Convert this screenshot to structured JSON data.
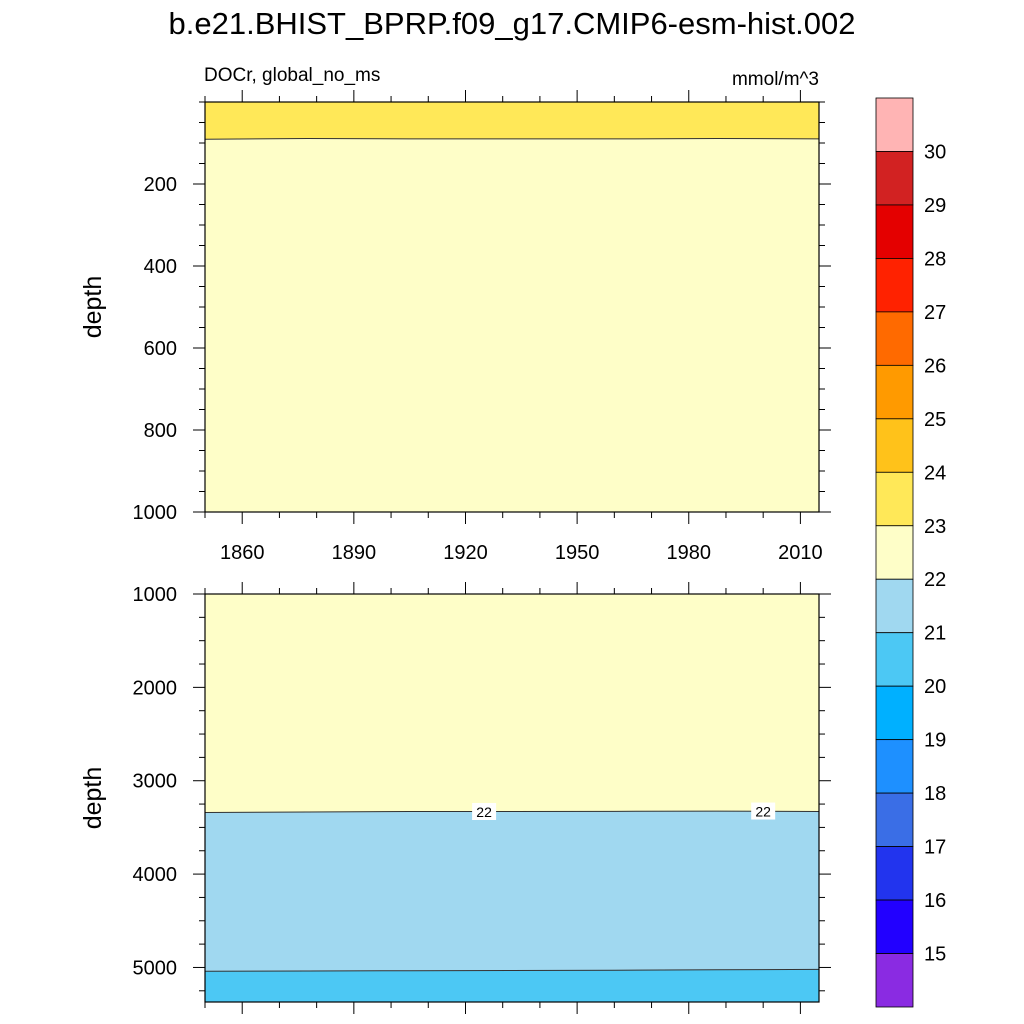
{
  "title": "b.e21.BHIST_BPRP.f09_g17.CMIP6-esm-hist.002",
  "subtitle_left": "DOCr, global_no_ms",
  "subtitle_right": "mmol/m^3",
  "colorbar": {
    "colors": [
      "#8a2be2",
      "#2200ff",
      "#2234ee",
      "#3a6ee6",
      "#1e90ff",
      "#00b0ff",
      "#4cc8f4",
      "#a0d8f0",
      "#fefec8",
      "#ffe858",
      "#ffc21a",
      "#ff9a00",
      "#ff6a00",
      "#ff2200",
      "#e40000",
      "#d22222",
      "#ffb4b4"
    ],
    "labels": [
      "15",
      "16",
      "17",
      "18",
      "19",
      "20",
      "21",
      "22",
      "23",
      "24",
      "25",
      "26",
      "27",
      "28",
      "29",
      "30"
    ]
  },
  "chart_data": [
    {
      "type": "heatmap",
      "panel": "upper",
      "title": "",
      "xlabel": "",
      "ylabel": "depth",
      "xlim": [
        1850,
        2015
      ],
      "ylim": [
        1000,
        0
      ],
      "x_ticks": [
        1860,
        1890,
        1920,
        1950,
        1980,
        2010
      ],
      "y_ticks": [
        200,
        400,
        600,
        800,
        1000
      ],
      "bands": [
        {
          "range": "23-24",
          "color": "#ffe858",
          "top": 0,
          "bottom": 90
        },
        {
          "range": "22-23",
          "color": "#fefec8",
          "top": 90,
          "bottom": 1000
        }
      ],
      "contours": [
        {
          "level": 23,
          "depth": [
            91,
            89,
            90,
            90,
            90,
            89,
            90
          ]
        }
      ],
      "contour_labels": []
    },
    {
      "type": "heatmap",
      "panel": "lower",
      "title": "",
      "xlabel": "",
      "ylabel": "depth",
      "xlim": [
        1850,
        2015
      ],
      "ylim": [
        5370,
        1000
      ],
      "x_ticks": [
        1860,
        1890,
        1920,
        1950,
        1980,
        2010
      ],
      "y_ticks": [
        1000,
        2000,
        3000,
        4000,
        5000
      ],
      "bands": [
        {
          "range": "22-23",
          "color": "#fefec8",
          "top": 1000,
          "bottom": 3330
        },
        {
          "range": "21-22",
          "color": "#a0d8f0",
          "top": 3330,
          "bottom": 5030
        },
        {
          "range": "20-21",
          "color": "#4cc8f4",
          "top": 5030,
          "bottom": 5370
        }
      ],
      "contours": [
        {
          "level": 22,
          "depth": [
            3340,
            3335,
            3330,
            3330,
            3328,
            3325,
            3330
          ]
        },
        {
          "level": 21,
          "depth": [
            5040,
            5038,
            5035,
            5033,
            5030,
            5025,
            5020
          ]
        }
      ],
      "contour_labels": [
        {
          "text": "22",
          "x": 1925,
          "depth": 3335
        },
        {
          "text": "22",
          "x": 2000,
          "depth": 3330
        }
      ]
    }
  ]
}
